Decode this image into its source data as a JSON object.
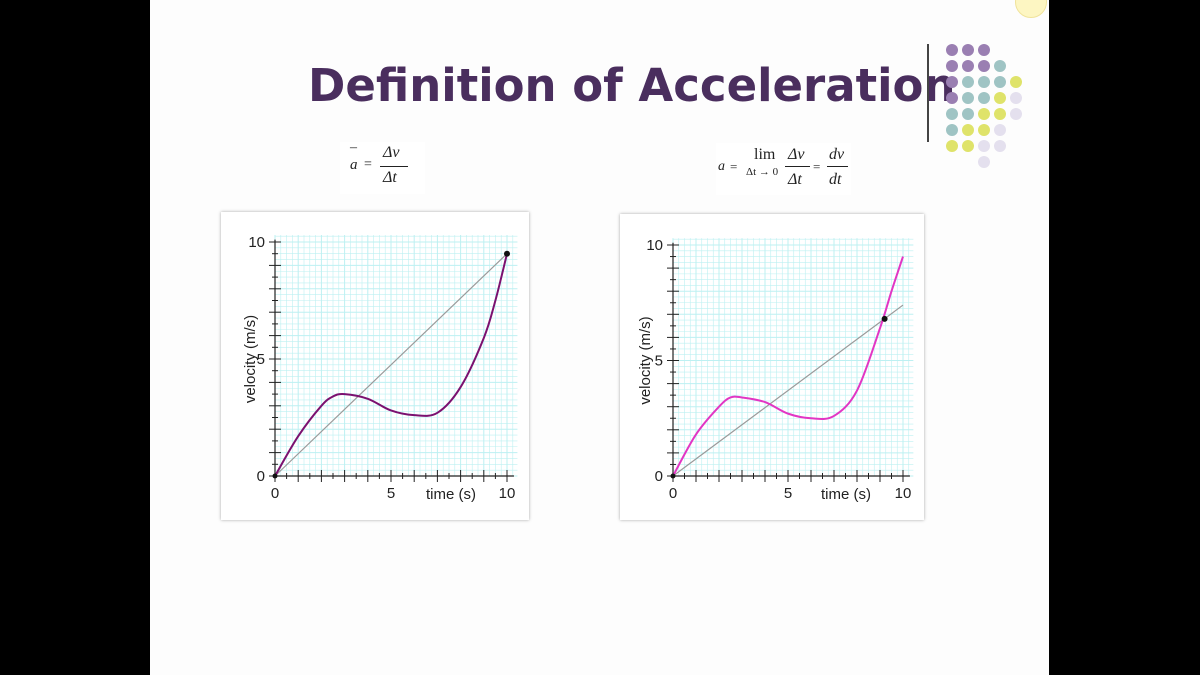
{
  "title": "Definition of Acceleration",
  "colors": {
    "title": "#4a2e5e",
    "dots_purple": "#9a7fb2",
    "dots_teal": "#9fc4c4",
    "dots_yellow": "#dfe36a",
    "dots_light": "#e4e0ee",
    "grid": "#bdf0f2",
    "curve_left": "#7b1170",
    "curve_right": "#e236c4",
    "secant": "#9a9a9a"
  },
  "decor": {
    "dot_grid_icon": "dot-grid-icon"
  },
  "formulas": {
    "average": {
      "lhs": "a",
      "bar": "–",
      "eq": "=",
      "num": "Δv",
      "den": "Δt"
    },
    "instantaneous": {
      "lhs": "a",
      "eq": "=",
      "lim": "lim",
      "sub": "Δt → 0",
      "num": "Δv",
      "den": "Δt",
      "eq2": "=",
      "num2": "dv",
      "den2": "dt"
    }
  },
  "chart_data": [
    {
      "type": "line",
      "xlabel": "time (s)",
      "ylabel": "velocity (m/s)",
      "xlim": [
        0,
        10
      ],
      "ylim": [
        0,
        10
      ],
      "x_tick_labels": [
        "0",
        "5",
        "10"
      ],
      "y_tick_labels": [
        "0",
        "5",
        "10"
      ],
      "grid": true,
      "series": [
        {
          "points": [
            [
              0,
              0
            ],
            [
              1,
              1.7
            ],
            [
              2,
              3
            ],
            [
              2.5,
              3.4
            ],
            [
              3,
              3.5
            ],
            [
              4,
              3.3
            ],
            [
              5,
              2.8
            ],
            [
              6,
              2.6
            ],
            [
              7,
              2.7
            ],
            [
              8,
              3.8
            ],
            [
              9,
              5.9
            ],
            [
              9.5,
              7.5
            ],
            [
              10,
              9.5
            ]
          ]
        },
        {
          "points": [
            [
              0,
              0
            ],
            [
              10,
              9.5
            ]
          ]
        }
      ],
      "marked_point": [
        10,
        9.5
      ]
    },
    {
      "type": "line",
      "xlabel": "time (s)",
      "ylabel": "velocity (m/s)",
      "xlim": [
        0,
        10
      ],
      "ylim": [
        0,
        10
      ],
      "x_tick_labels": [
        "0",
        "5",
        "10"
      ],
      "y_tick_labels": [
        "0",
        "5",
        "10"
      ],
      "grid": true,
      "series": [
        {
          "points": [
            [
              0,
              0
            ],
            [
              1,
              1.8
            ],
            [
              2,
              3
            ],
            [
              2.5,
              3.4
            ],
            [
              3,
              3.4
            ],
            [
              4,
              3.2
            ],
            [
              5,
              2.7
            ],
            [
              6,
              2.5
            ],
            [
              7,
              2.6
            ],
            [
              8,
              3.7
            ],
            [
              9,
              6.4
            ],
            [
              9.5,
              8
            ],
            [
              10,
              9.5
            ]
          ]
        },
        {
          "points": [
            [
              0,
              0
            ],
            [
              10,
              7.4
            ]
          ]
        }
      ],
      "marked_point": [
        9.2,
        6.8
      ]
    }
  ]
}
